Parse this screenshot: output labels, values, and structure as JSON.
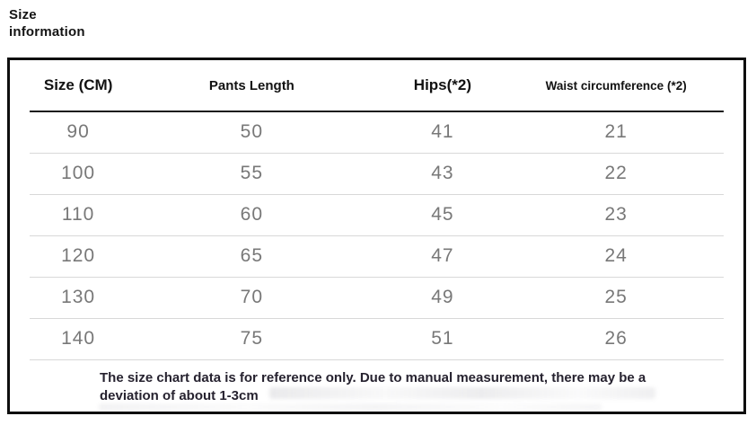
{
  "page_title": "Size information",
  "colors": {
    "border": "#0e0e0e",
    "header_text": "#121212",
    "data_text": "#787878",
    "row_divider": "#d8d8d8",
    "note_text": "#26222f"
  },
  "chart_data": {
    "type": "table",
    "title": "Size information",
    "columns": [
      "Size (CM)",
      "Pants Length",
      "Hips(*2)",
      "Waist circumference (*2)"
    ],
    "rows": [
      [
        "90",
        "50",
        "41",
        "21"
      ],
      [
        "100",
        "55",
        "43",
        "22"
      ],
      [
        "110",
        "60",
        "45",
        "23"
      ],
      [
        "120",
        "65",
        "47",
        "24"
      ],
      [
        "130",
        "70",
        "49",
        "25"
      ],
      [
        "140",
        "75",
        "51",
        "26"
      ]
    ],
    "note": "The size chart data is for reference only. Due to manual measurement, there may be a deviation of about 1-3cm"
  }
}
